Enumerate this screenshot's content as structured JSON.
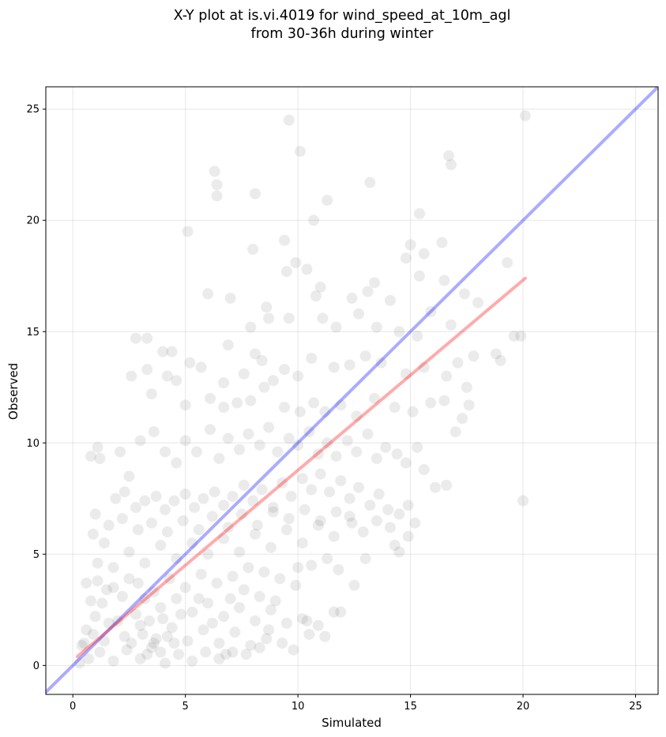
{
  "chart_data": {
    "type": "scatter",
    "title_line1": "X-Y plot at is.vi.4019 for wind_speed_at_10m_agl",
    "title_line2": "from 30-36h during winter",
    "xlabel": "Simulated",
    "ylabel": "Observed",
    "xlim": [
      -1.2,
      26.0
    ],
    "ylim": [
      -1.3,
      26.0
    ],
    "xticks": [
      0,
      5,
      10,
      15,
      20,
      25
    ],
    "yticks": [
      0,
      5,
      10,
      15,
      20,
      25
    ],
    "grid": true,
    "point_color": "#000000",
    "point_alpha": 0.08,
    "identity_line": {
      "x": [
        -1.2,
        26.0
      ],
      "y": [
        -1.2,
        26.0
      ],
      "color": "#0000ff",
      "alpha": 0.33
    },
    "fit_line": {
      "x": [
        0.2,
        20.1
      ],
      "y": [
        0.4,
        17.4
      ],
      "color": "#ff0000",
      "alpha": 0.33
    },
    "points": [
      [
        9.6,
        24.5
      ],
      [
        20.1,
        24.7
      ],
      [
        10.1,
        23.1
      ],
      [
        16.7,
        22.9
      ],
      [
        16.8,
        22.5
      ],
      [
        6.3,
        22.2
      ],
      [
        6.4,
        21.6
      ],
      [
        13.2,
        21.7
      ],
      [
        6.4,
        21.1
      ],
      [
        8.1,
        21.2
      ],
      [
        11.3,
        20.9
      ],
      [
        5.1,
        19.5
      ],
      [
        10.7,
        20.0
      ],
      [
        15.4,
        20.3
      ],
      [
        9.4,
        19.1
      ],
      [
        8.0,
        18.7
      ],
      [
        9.9,
        18.1
      ],
      [
        10.4,
        17.8
      ],
      [
        16.4,
        19.0
      ],
      [
        19.3,
        18.1
      ],
      [
        14.8,
        18.3
      ],
      [
        15.6,
        18.5
      ],
      [
        15.0,
        18.9
      ],
      [
        9.5,
        17.7
      ],
      [
        6.0,
        16.7
      ],
      [
        7.0,
        16.5
      ],
      [
        10.8,
        16.6
      ],
      [
        11.0,
        17.0
      ],
      [
        13.1,
        16.8
      ],
      [
        13.4,
        17.2
      ],
      [
        14.1,
        16.4
      ],
      [
        16.5,
        17.3
      ],
      [
        17.4,
        16.7
      ],
      [
        18.0,
        16.3
      ],
      [
        15.4,
        17.5
      ],
      [
        15.9,
        15.9
      ],
      [
        3.3,
        14.7
      ],
      [
        4.0,
        14.1
      ],
      [
        4.4,
        14.1
      ],
      [
        6.9,
        14.4
      ],
      [
        2.8,
        14.7
      ],
      [
        8.1,
        14.0
      ],
      [
        8.7,
        15.6
      ],
      [
        9.6,
        15.6
      ],
      [
        8.6,
        16.1
      ],
      [
        7.9,
        15.2
      ],
      [
        11.1,
        15.6
      ],
      [
        11.7,
        15.2
      ],
      [
        12.4,
        16.5
      ],
      [
        12.7,
        15.8
      ],
      [
        13.5,
        15.2
      ],
      [
        14.5,
        15.0
      ],
      [
        15.3,
        14.8
      ],
      [
        16.8,
        15.3
      ],
      [
        18.8,
        14.0
      ],
      [
        19.0,
        13.7
      ],
      [
        19.6,
        14.8
      ],
      [
        19.9,
        14.8
      ],
      [
        17.8,
        13.9
      ],
      [
        17.1,
        13.6
      ],
      [
        3.3,
        13.3
      ],
      [
        4.2,
        13.0
      ],
      [
        4.6,
        12.8
      ],
      [
        5.2,
        13.6
      ],
      [
        5.7,
        13.4
      ],
      [
        6.7,
        12.7
      ],
      [
        7.6,
        13.1
      ],
      [
        8.4,
        13.7
      ],
      [
        8.9,
        12.8
      ],
      [
        9.4,
        13.3
      ],
      [
        10.0,
        13.0
      ],
      [
        10.6,
        13.8
      ],
      [
        11.6,
        13.4
      ],
      [
        12.3,
        13.5
      ],
      [
        13.0,
        13.9
      ],
      [
        13.7,
        13.6
      ],
      [
        14.8,
        13.1
      ],
      [
        15.6,
        13.4
      ],
      [
        16.6,
        13.0
      ],
      [
        17.5,
        12.5
      ],
      [
        2.6,
        13.0
      ],
      [
        3.5,
        12.2
      ],
      [
        5.0,
        11.7
      ],
      [
        6.1,
        12.0
      ],
      [
        6.7,
        11.6
      ],
      [
        7.3,
        11.8
      ],
      [
        7.9,
        11.9
      ],
      [
        8.5,
        12.5
      ],
      [
        9.4,
        11.6
      ],
      [
        10.1,
        11.4
      ],
      [
        10.7,
        11.8
      ],
      [
        11.2,
        11.4
      ],
      [
        11.9,
        11.7
      ],
      [
        12.6,
        11.2
      ],
      [
        13.4,
        12.0
      ],
      [
        14.3,
        11.6
      ],
      [
        15.1,
        11.4
      ],
      [
        15.9,
        11.8
      ],
      [
        16.5,
        11.9
      ],
      [
        17.3,
        11.1
      ],
      [
        1.1,
        9.8
      ],
      [
        1.2,
        9.3
      ],
      [
        0.8,
        9.4
      ],
      [
        2.1,
        9.6
      ],
      [
        2.5,
        8.5
      ],
      [
        3.0,
        10.1
      ],
      [
        3.6,
        10.5
      ],
      [
        4.1,
        9.6
      ],
      [
        4.6,
        9.1
      ],
      [
        5.0,
        10.1
      ],
      [
        5.5,
        9.6
      ],
      [
        6.1,
        10.6
      ],
      [
        6.5,
        9.3
      ],
      [
        6.9,
        10.2
      ],
      [
        7.4,
        9.7
      ],
      [
        7.8,
        10.4
      ],
      [
        8.3,
        9.9
      ],
      [
        8.7,
        10.7
      ],
      [
        9.1,
        9.6
      ],
      [
        9.6,
        10.2
      ],
      [
        10.0,
        9.9
      ],
      [
        10.5,
        10.5
      ],
      [
        10.9,
        9.5
      ],
      [
        11.3,
        10.0
      ],
      [
        11.7,
        9.4
      ],
      [
        12.2,
        10.1
      ],
      [
        12.6,
        9.6
      ],
      [
        13.1,
        10.4
      ],
      [
        13.5,
        9.3
      ],
      [
        13.9,
        9.8
      ],
      [
        14.4,
        9.5
      ],
      [
        14.8,
        9.1
      ],
      [
        15.3,
        9.8
      ],
      [
        15.6,
        8.8
      ],
      [
        16.1,
        8.0
      ],
      [
        16.6,
        8.1
      ],
      [
        17.0,
        10.5
      ],
      [
        17.6,
        11.7
      ],
      [
        20.0,
        7.4
      ],
      [
        1.9,
        7.5
      ],
      [
        2.3,
        7.8
      ],
      [
        2.8,
        7.1
      ],
      [
        3.2,
        7.4
      ],
      [
        3.7,
        7.6
      ],
      [
        4.1,
        7.0
      ],
      [
        4.5,
        7.4
      ],
      [
        5.0,
        7.7
      ],
      [
        5.4,
        7.1
      ],
      [
        5.8,
        7.5
      ],
      [
        6.3,
        7.8
      ],
      [
        6.7,
        7.2
      ],
      [
        7.1,
        7.6
      ],
      [
        7.6,
        8.1
      ],
      [
        8.0,
        7.4
      ],
      [
        8.4,
        7.9
      ],
      [
        8.9,
        7.1
      ],
      [
        9.3,
        8.2
      ],
      [
        9.7,
        7.6
      ],
      [
        10.2,
        8.4
      ],
      [
        10.6,
        7.9
      ],
      [
        11.0,
        8.6
      ],
      [
        11.4,
        7.8
      ],
      [
        11.9,
        8.3
      ],
      [
        12.3,
        7.5
      ],
      [
        12.7,
        8.0
      ],
      [
        13.2,
        7.2
      ],
      [
        13.6,
        7.7
      ],
      [
        14.0,
        7.0
      ],
      [
        14.5,
        6.8
      ],
      [
        14.9,
        7.2
      ],
      [
        15.2,
        6.4
      ],
      [
        14.1,
        6.2
      ],
      [
        13.5,
        6.5
      ],
      [
        12.9,
        6.0
      ],
      [
        12.3,
        6.7
      ],
      [
        11.6,
        5.8
      ],
      [
        10.9,
        6.3
      ],
      [
        10.2,
        5.5
      ],
      [
        9.5,
        6.1
      ],
      [
        8.8,
        5.3
      ],
      [
        8.1,
        5.9
      ],
      [
        7.4,
        5.1
      ],
      [
        6.7,
        5.7
      ],
      [
        6.0,
        5.0
      ],
      [
        5.3,
        5.5
      ],
      [
        4.6,
        4.8
      ],
      [
        3.9,
        5.4
      ],
      [
        3.2,
        4.6
      ],
      [
        2.5,
        5.1
      ],
      [
        1.8,
        4.4
      ],
      [
        1.1,
        4.6
      ],
      [
        1.4,
        5.5
      ],
      [
        0.9,
        5.9
      ],
      [
        1.0,
        6.8
      ],
      [
        1.6,
        6.3
      ],
      [
        2.2,
        6.6
      ],
      [
        2.9,
        6.1
      ],
      [
        3.5,
        6.4
      ],
      [
        4.2,
        6.0
      ],
      [
        4.9,
        6.5
      ],
      [
        5.6,
        6.1
      ],
      [
        6.2,
        6.7
      ],
      [
        6.9,
        6.2
      ],
      [
        7.5,
        6.8
      ],
      [
        8.2,
        6.3
      ],
      [
        8.9,
        6.9
      ],
      [
        9.6,
        6.6
      ],
      [
        10.3,
        7.0
      ],
      [
        11.0,
        6.5
      ],
      [
        11.7,
        6.9
      ],
      [
        12.4,
        6.4
      ],
      [
        13.0,
        4.8
      ],
      [
        14.3,
        5.4
      ],
      [
        14.5,
        5.1
      ],
      [
        14.9,
        5.8
      ],
      [
        11.8,
        4.3
      ],
      [
        12.5,
        3.6
      ],
      [
        11.3,
        4.8
      ],
      [
        10.6,
        4.5
      ],
      [
        10.0,
        4.4
      ],
      [
        9.9,
        3.6
      ],
      [
        9.2,
        3.9
      ],
      [
        8.5,
        4.2
      ],
      [
        7.8,
        4.4
      ],
      [
        7.1,
        4.0
      ],
      [
        6.4,
        3.7
      ],
      [
        5.7,
        4.1
      ],
      [
        5.0,
        3.5
      ],
      [
        4.3,
        3.9
      ],
      [
        3.6,
        3.3
      ],
      [
        2.9,
        3.7
      ],
      [
        2.2,
        3.1
      ],
      [
        1.5,
        3.4
      ],
      [
        0.8,
        2.9
      ],
      [
        0.6,
        3.7
      ],
      [
        1.1,
        3.8
      ],
      [
        1.8,
        3.5
      ],
      [
        2.5,
        3.9
      ],
      [
        3.2,
        3.0
      ],
      [
        3.9,
        2.6
      ],
      [
        4.6,
        3.0
      ],
      [
        5.3,
        2.4
      ],
      [
        6.0,
        2.8
      ],
      [
        6.7,
        2.2
      ],
      [
        7.4,
        2.6
      ],
      [
        8.1,
        2.0
      ],
      [
        8.8,
        2.5
      ],
      [
        9.5,
        1.9
      ],
      [
        10.2,
        2.1
      ],
      [
        10.9,
        1.8
      ],
      [
        11.6,
        2.4
      ],
      [
        11.2,
        1.3
      ],
      [
        10.5,
        1.4
      ],
      [
        9.8,
        0.7
      ],
      [
        8.6,
        1.2
      ],
      [
        7.9,
        0.9
      ],
      [
        7.2,
        1.5
      ],
      [
        6.5,
        1.0
      ],
      [
        5.8,
        1.6
      ],
      [
        5.1,
        1.1
      ],
      [
        4.4,
        1.7
      ],
      [
        3.7,
        1.2
      ],
      [
        3.0,
        1.8
      ],
      [
        2.3,
        1.3
      ],
      [
        1.6,
        1.9
      ],
      [
        0.9,
        1.4
      ],
      [
        0.5,
        1.0
      ],
      [
        0.7,
        0.3
      ],
      [
        1.2,
        0.6
      ],
      [
        1.8,
        0.2
      ],
      [
        2.4,
        0.7
      ],
      [
        3.0,
        0.3
      ],
      [
        3.5,
        0.8
      ],
      [
        4.1,
        0.1
      ],
      [
        4.7,
        0.5
      ],
      [
        5.3,
        0.2
      ],
      [
        5.9,
        0.6
      ],
      [
        6.5,
        0.3
      ],
      [
        7.1,
        0.6
      ],
      [
        7.7,
        0.5
      ],
      [
        8.3,
        0.8
      ],
      [
        3.3,
        0.5
      ],
      [
        3.6,
        1.0
      ],
      [
        3.9,
        0.6
      ],
      [
        4.2,
        1.3
      ],
      [
        3.4,
        2.0
      ],
      [
        2.8,
        2.3
      ],
      [
        4.0,
        2.1
      ],
      [
        4.8,
        2.3
      ],
      [
        2.0,
        2.0
      ],
      [
        2.6,
        1.0
      ],
      [
        3.1,
        1.4
      ],
      [
        4.5,
        1.0
      ],
      [
        1.4,
        1.1
      ],
      [
        1.0,
        2.2
      ],
      [
        1.3,
        2.8
      ],
      [
        0.4,
        0.9
      ],
      [
        0.3,
        0.1
      ],
      [
        0.6,
        1.6
      ],
      [
        5.6,
        3.0
      ],
      [
        6.2,
        1.9
      ],
      [
        7.0,
        3.0
      ],
      [
        7.6,
        3.4
      ],
      [
        8.3,
        3.1
      ],
      [
        9.0,
        2.9
      ],
      [
        8.7,
        1.6
      ],
      [
        9.3,
        1.0
      ],
      [
        10.4,
        2.0
      ],
      [
        11.9,
        2.4
      ],
      [
        6.8,
        0.5
      ]
    ]
  }
}
